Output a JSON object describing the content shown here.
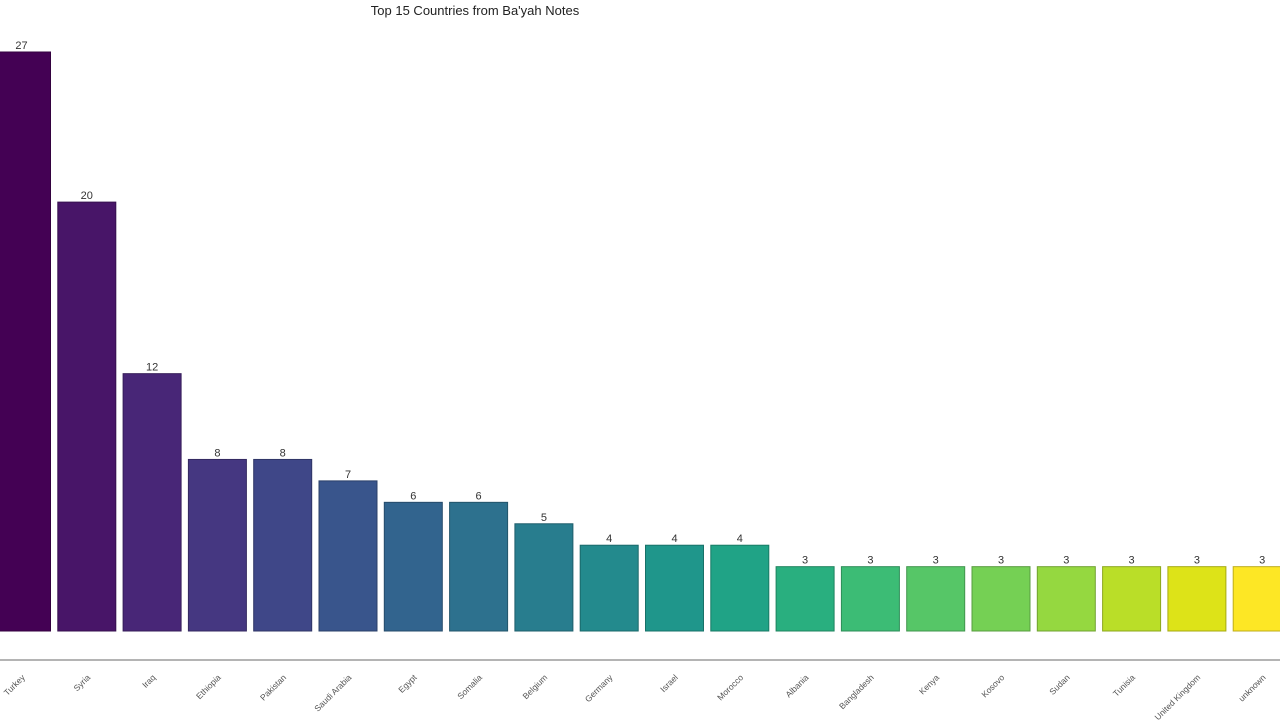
{
  "chart_data": {
    "type": "bar",
    "title": "Top 15 Countries from Ba'yah Notes",
    "categories": [
      "Turkey",
      "Syria",
      "Iraq",
      "Ethiopia",
      "Pakistan",
      "Saudi Arabia",
      "Egypt",
      "Somalia",
      "Belgium",
      "Germany",
      "Israel",
      "Morocco",
      "Albania",
      "Bangladesh",
      "Kenya",
      "Kosovo",
      "Sudan",
      "Tunisia",
      "United Kingdom",
      "unknown"
    ],
    "values": [
      27,
      20,
      12,
      8,
      8,
      7,
      6,
      6,
      5,
      4,
      4,
      4,
      3,
      3,
      3,
      3,
      3,
      3,
      3,
      3
    ],
    "colors": [
      "#440154",
      "#481568",
      "#482677",
      "#453781",
      "#3f4788",
      "#39558c",
      "#32648e",
      "#2d718e",
      "#287d8e",
      "#238a8d",
      "#1f968b",
      "#20a386",
      "#29af7f",
      "#3cbc75",
      "#56c667",
      "#75d054",
      "#95d840",
      "#bade28",
      "#dde318",
      "#fde725"
    ]
  }
}
